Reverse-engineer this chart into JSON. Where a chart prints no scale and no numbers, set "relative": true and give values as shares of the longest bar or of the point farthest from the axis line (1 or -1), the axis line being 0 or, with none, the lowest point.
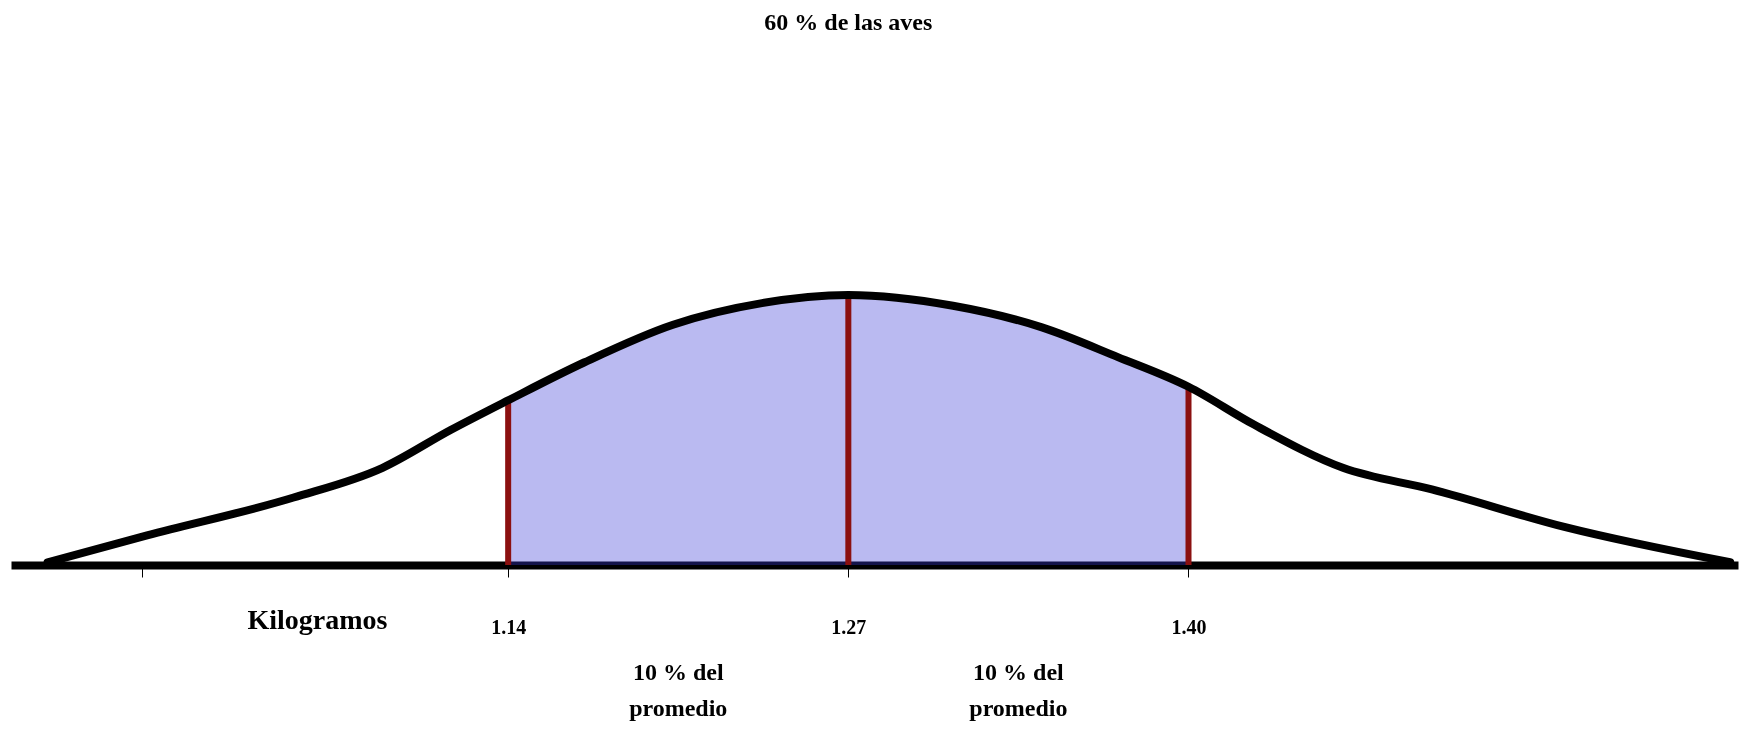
{
  "chart_data": {
    "type": "line",
    "relative": true,
    "xlabel": "Kilogramos",
    "x": [
      0.964,
      1.002,
      1.058,
      1.092,
      1.118,
      1.14,
      1.169,
      1.203,
      1.237,
      1.27,
      1.31,
      1.344,
      1.373,
      1.4,
      1.425,
      1.459,
      1.493,
      1.544,
      1.607
    ],
    "series": [
      {
        "color": "#000000",
        "values": [
          0.01,
          0.11,
          0.25,
          0.36,
          0.5,
          0.61,
          0.75,
          0.89,
          0.97,
          1.0,
          0.96,
          0.88,
          0.77,
          0.66,
          0.52,
          0.36,
          0.28,
          0.14,
          0.01
        ]
      },
      {
        "type": "area",
        "color": "#3a3ad6",
        "x": [
          1.14,
          1.169,
          1.203,
          1.237,
          1.27,
          1.31,
          1.344,
          1.373,
          1.4
        ],
        "values": [
          0.61,
          0.75,
          0.89,
          0.97,
          1.0,
          0.96,
          0.88,
          0.77,
          0.66
        ]
      }
    ],
    "xlim": [
      0.95,
      1.61
    ],
    "xticks": [
      {
        "value": 1.0,
        "label": null
      },
      1.14,
      1.27,
      {
        "value": 1.4,
        "label": "1.40"
      }
    ],
    "grid": false,
    "ref_lines": [
      {
        "axis": "x",
        "value": 1.14,
        "color": "#8b1010"
      },
      {
        "axis": "x",
        "value": 1.27,
        "color": "#8b1010"
      },
      {
        "axis": "x",
        "value": 1.4,
        "color": "#8b1010"
      }
    ],
    "annotations": [
      "60 % de las aves",
      "10 % del promedio",
      "10 % del promedio"
    ]
  }
}
